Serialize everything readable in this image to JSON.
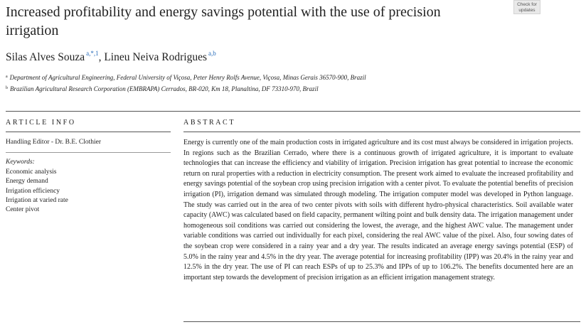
{
  "badge": {
    "line1": "Check for",
    "line2": "updates"
  },
  "title": "Increased profitability and energy savings potential with the use of precision irrigation",
  "authors": {
    "separator": ",",
    "list": [
      {
        "name": "Silas Alves Souza",
        "affil": "a,*,1"
      },
      {
        "name": "Lineu Neiva Rodrigues",
        "affil": "a,b"
      }
    ]
  },
  "affiliations": [
    {
      "mark": "a",
      "text": "Department of Agricultural Engineering, Federal University of Viçosa, Peter Henry Rolfs Avenue, Viçosa, Minas Gerais 36570-900, Brazil"
    },
    {
      "mark": "b",
      "text": "Brazilian Agricultural Research Corporation (EMBRAPA) Cerrados, BR-020, Km 18, Planaltina, DF 73310-970, Brazil"
    }
  ],
  "article_info": {
    "heading": "ARTICLE INFO",
    "editor": "Handling Editor - Dr. B.E. Clothier",
    "keywords_label": "Keywords:",
    "keywords": [
      "Economic analysis",
      "Energy demand",
      "Irrigation efficiency",
      "Irrigation at varied rate",
      "Center pivot"
    ]
  },
  "abstract": {
    "heading": "ABSTRACT",
    "text": "Energy is currently one of the main production costs in irrigated agriculture and its cost must always be considered in irrigation projects. In regions such as the Brazilian Cerrado, where there is a continuous growth of irrigated agriculture, it is important to evaluate technologies that can increase the efficiency and viability of irrigation. Precision irrigation has great potential to increase the economic return on rural properties with a reduction in electricity consumption. The present work aimed to evaluate the increased profitability and energy savings potential of the soybean crop using precision irrigation with a center pivot. To evaluate the potential benefits of precision irrigation (PI), irrigation demand was simulated through modeling. The irrigation computer model was developed in Python language. The study was carried out in the area of two center pivots with soils with different hydro-physical characteristics. Soil available water capacity (AWC) was calculated based on field capacity, permanent wilting point and bulk density data. The irrigation management under homogeneous soil conditions was carried out considering the lowest, the average, and the highest AWC value. The management under variable conditions was carried out individually for each pixel, considering the real AWC value of the pixel. Also, four sowing dates of the soybean crop were considered in a rainy year and a dry year. The results indicated an average energy savings potential (ESP) of 5.0% in the rainy year and 4.5% in the dry year. The average potential for increasing profitability (IPP) was 20.4% in the rainy year and 12.5% in the dry year. The use of PI can reach ESPs of up to 25.3% and IPPs of up to 106.2%. The benefits documented here are an important step towards the development of precision irrigation as an efficient irrigation management strategy."
  }
}
